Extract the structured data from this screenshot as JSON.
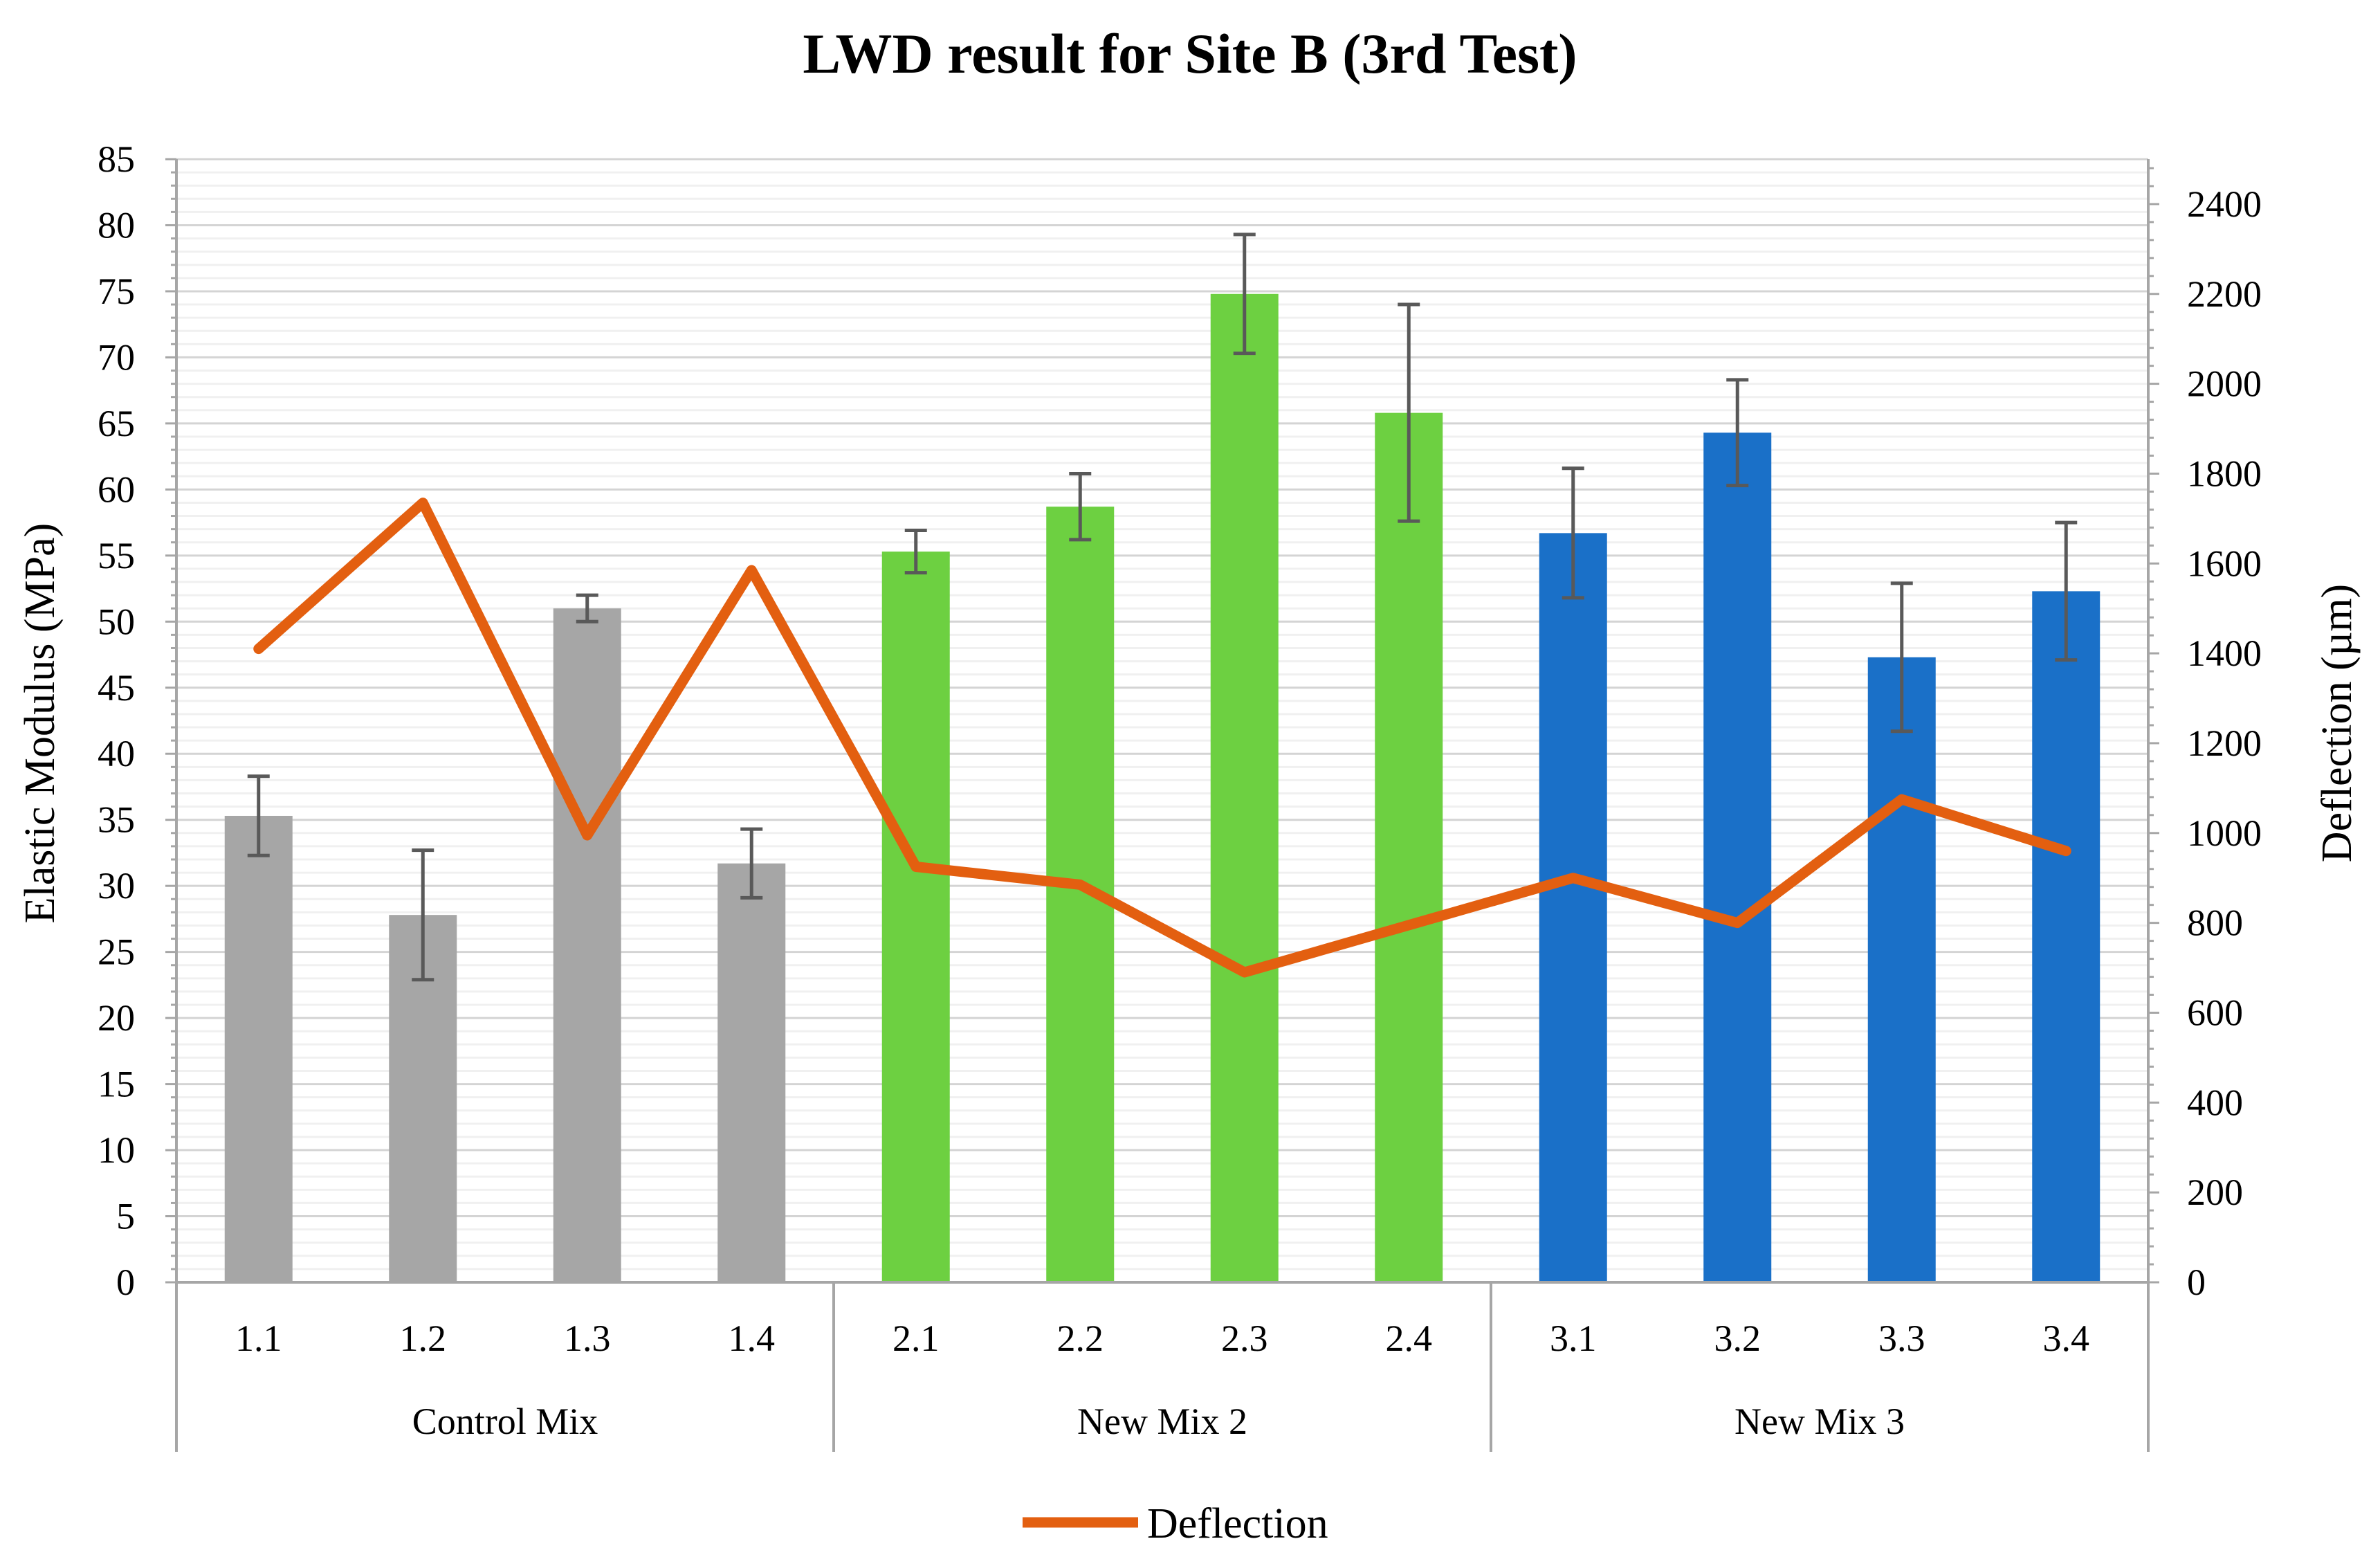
{
  "chart_data": {
    "type": "bar",
    "title": "LWD result for Site B (3rd Test)",
    "ylabel": "Elastic Modulus (MPa)",
    "y2label": "Deflection (µm)",
    "ylim": [
      0,
      85
    ],
    "y2lim": [
      0,
      2500
    ],
    "yticks": [
      "0",
      "5",
      "10",
      "15",
      "20",
      "25",
      "30",
      "35",
      "40",
      "45",
      "50",
      "55",
      "60",
      "65",
      "70",
      "75",
      "80",
      "85"
    ],
    "y2ticks": [
      "0",
      "200",
      "400",
      "600",
      "800",
      "1000",
      "1200",
      "1400",
      "1600",
      "1800",
      "2000",
      "2200",
      "2400"
    ],
    "categories": [
      "1.1",
      "1.2",
      "1.3",
      "1.4",
      "2.1",
      "2.2",
      "2.3",
      "2.4",
      "3.1",
      "3.2",
      "3.3",
      "3.4"
    ],
    "groups": [
      {
        "label": "Control Mix",
        "count": 4,
        "color": "#a6a6a6"
      },
      {
        "label": "New Mix 2",
        "count": 4,
        "color": "#6dd041"
      },
      {
        "label": "New Mix  3",
        "count": 4,
        "color": "#1a70c8"
      }
    ],
    "series": [
      {
        "name": "Elastic Modulus",
        "kind": "bar",
        "axis": "left",
        "values": [
          35.3,
          27.8,
          51.0,
          31.7,
          55.3,
          58.7,
          74.8,
          65.8,
          56.7,
          64.3,
          47.3,
          52.3
        ],
        "error": [
          3.0,
          4.9,
          1.0,
          2.6,
          1.6,
          2.5,
          4.5,
          8.2,
          4.9,
          4.0,
          5.6,
          5.2
        ]
      },
      {
        "name": "Deflection",
        "kind": "line",
        "axis": "right",
        "color": "#e35f10",
        "values": [
          1410,
          1735,
          995,
          1585,
          925,
          885,
          690,
          795,
          900,
          800,
          1075,
          960
        ]
      }
    ],
    "legend": {
      "label": "Deflection",
      "position": "bottom"
    },
    "grid": true
  }
}
